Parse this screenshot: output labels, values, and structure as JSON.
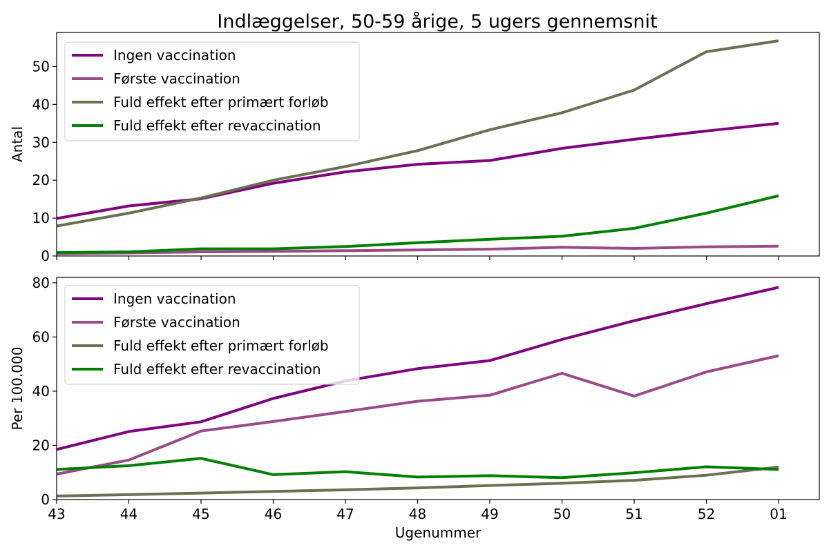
{
  "chart_data": [
    {
      "type": "line",
      "title": "Indlæggelser, 50-59 årige, 5 ugers gennemsnit",
      "xlabel": "",
      "ylabel": "Antal",
      "x": [
        "43",
        "44",
        "45",
        "46",
        "47",
        "48",
        "49",
        "50",
        "51",
        "52",
        "01"
      ],
      "ylim": [
        0,
        59
      ],
      "yticks": [
        0,
        10,
        20,
        30,
        40,
        50
      ],
      "grid": false,
      "legend_position": "top-left",
      "series": [
        {
          "name": "Ingen vaccination",
          "color": "#800080",
          "values": [
            9.9,
            13.2,
            15.1,
            19.2,
            22.2,
            24.2,
            25.2,
            28.4,
            30.8,
            33.0,
            35.0
          ]
        },
        {
          "name": "Første vaccination",
          "color": "#9c4a87",
          "values": [
            0.6,
            0.8,
            1.1,
            1.2,
            1.4,
            1.6,
            1.8,
            2.3,
            2.0,
            2.4,
            2.6
          ]
        },
        {
          "name": "Fuld effekt efter primært forløb",
          "color": "#6b7052",
          "values": [
            7.9,
            11.3,
            15.3,
            20.0,
            23.6,
            27.8,
            33.3,
            37.8,
            43.8,
            53.9,
            56.8
          ]
        },
        {
          "name": "Fuld effekt efter revaccination",
          "color": "#008000",
          "values": [
            0.9,
            1.1,
            1.9,
            1.9,
            2.5,
            3.5,
            4.4,
            5.2,
            7.3,
            11.3,
            15.9
          ]
        }
      ]
    },
    {
      "type": "line",
      "title": "",
      "xlabel": "Ugenummer",
      "ylabel": "Per 100.000",
      "x": [
        "43",
        "44",
        "45",
        "46",
        "47",
        "48",
        "49",
        "50",
        "51",
        "52",
        "01"
      ],
      "ylim": [
        0,
        82
      ],
      "yticks": [
        0,
        20,
        40,
        60,
        80
      ],
      "grid": false,
      "legend_position": "top-left",
      "series": [
        {
          "name": "Ingen vaccination",
          "color": "#800080",
          "values": [
            18.5,
            25.1,
            28.7,
            37.3,
            43.8,
            48.3,
            51.3,
            59.1,
            66.0,
            72.3,
            78.3
          ]
        },
        {
          "name": "Første vaccination",
          "color": "#9c4a87",
          "values": [
            9.4,
            14.6,
            25.3,
            28.8,
            32.5,
            36.3,
            38.5,
            46.6,
            38.2,
            47.1,
            53.1
          ]
        },
        {
          "name": "Fuld effekt efter primært forløb",
          "color": "#6b7052",
          "values": [
            1.3,
            1.8,
            2.4,
            3.0,
            3.6,
            4.3,
            5.2,
            6.0,
            7.1,
            9.0,
            12.0
          ]
        },
        {
          "name": "Fuld effekt efter revaccination",
          "color": "#008000",
          "values": [
            11.1,
            12.5,
            15.2,
            9.2,
            10.3,
            8.3,
            8.8,
            8.1,
            9.9,
            12.1,
            11.1
          ]
        }
      ]
    }
  ]
}
